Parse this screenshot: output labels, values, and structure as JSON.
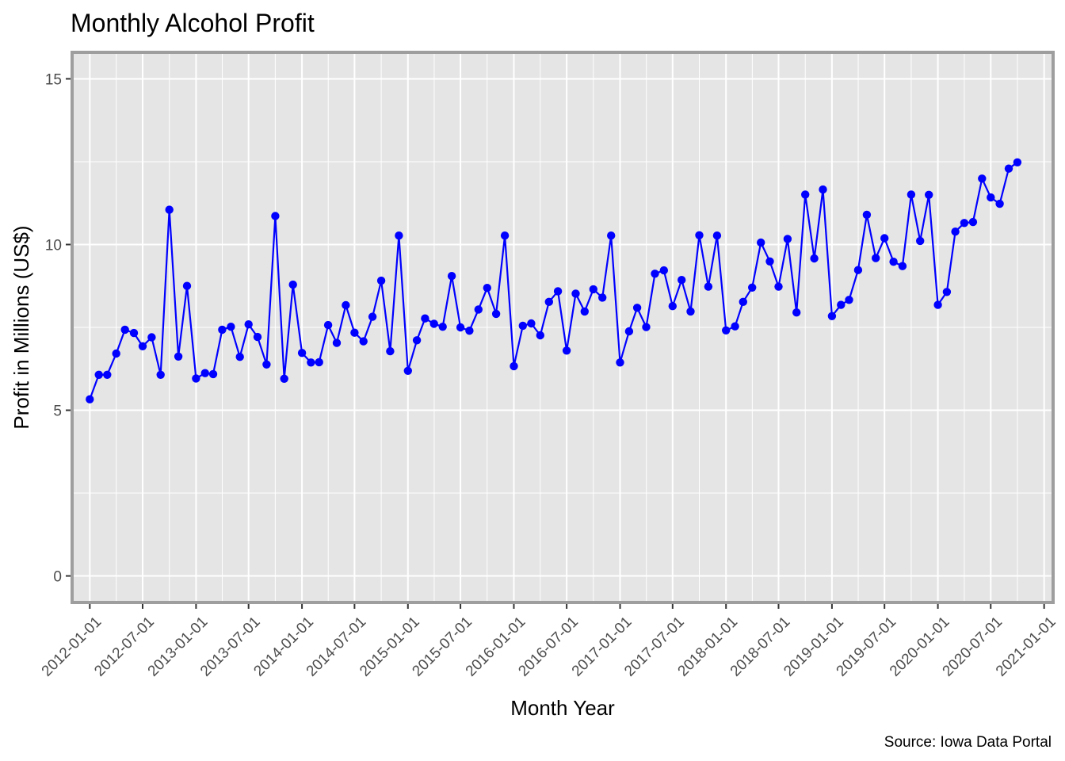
{
  "chart_data": {
    "type": "line",
    "title": "Monthly Alcohol Profit",
    "xlabel": "Month Year",
    "ylabel": "Profit in Millions (US$)",
    "caption": "Source: Iowa Data Portal",
    "ylim": [
      -0.8,
      15.8
    ],
    "xlim": [
      "2011-11-01",
      "2021-02-01"
    ],
    "y_ticks": [
      0,
      5,
      10,
      15
    ],
    "y_tick_labels": [
      "0",
      "5",
      "10",
      "15"
    ],
    "x_ticks": [
      "2012-01-01",
      "2012-07-01",
      "2013-01-01",
      "2013-07-01",
      "2014-01-01",
      "2014-07-01",
      "2015-01-01",
      "2015-07-01",
      "2016-01-01",
      "2016-07-01",
      "2017-01-01",
      "2017-07-01",
      "2018-01-01",
      "2018-07-01",
      "2019-01-01",
      "2019-07-01",
      "2020-01-01",
      "2020-07-01",
      "2021-01-01"
    ],
    "x_tick_labels": [
      "2012-01-01",
      "2012-07-01",
      "2013-01-01",
      "2013-07-01",
      "2014-01-01",
      "2014-07-01",
      "2015-01-01",
      "2015-07-01",
      "2016-01-01",
      "2016-07-01",
      "2017-01-01",
      "2017-07-01",
      "2018-01-01",
      "2018-07-01",
      "2019-01-01",
      "2019-07-01",
      "2020-01-01",
      "2020-07-01",
      "2021-01-01"
    ],
    "grid": true,
    "colors": {
      "series": "#0000ff",
      "panel": "#e5e5e5",
      "grid": "#ffffff",
      "border": "#9e9e9e"
    },
    "series": [
      {
        "x": [
          "2012-01-01",
          "2012-02-01",
          "2012-03-01",
          "2012-04-01",
          "2012-05-01",
          "2012-06-01",
          "2012-07-01",
          "2012-08-01",
          "2012-09-01",
          "2012-10-01",
          "2012-11-01",
          "2012-12-01",
          "2013-01-01",
          "2013-02-01",
          "2013-03-01",
          "2013-04-01",
          "2013-05-01",
          "2013-06-01",
          "2013-07-01",
          "2013-08-01",
          "2013-09-01",
          "2013-10-01",
          "2013-11-01",
          "2013-12-01",
          "2014-01-01",
          "2014-02-01",
          "2014-03-01",
          "2014-04-01",
          "2014-05-01",
          "2014-06-01",
          "2014-07-01",
          "2014-08-01",
          "2014-09-01",
          "2014-10-01",
          "2014-11-01",
          "2014-12-01",
          "2015-01-01",
          "2015-02-01",
          "2015-03-01",
          "2015-04-01",
          "2015-05-01",
          "2015-06-01",
          "2015-07-01",
          "2015-08-01",
          "2015-09-01",
          "2015-10-01",
          "2015-11-01",
          "2015-12-01",
          "2016-01-01",
          "2016-02-01",
          "2016-03-01",
          "2016-04-01",
          "2016-05-01",
          "2016-06-01",
          "2016-07-01",
          "2016-08-01",
          "2016-09-01",
          "2016-10-01",
          "2016-11-01",
          "2016-12-01",
          "2017-01-01",
          "2017-02-01",
          "2017-03-01",
          "2017-04-01",
          "2017-05-01",
          "2017-06-01",
          "2017-07-01",
          "2017-08-01",
          "2017-09-01",
          "2017-10-01",
          "2017-11-01",
          "2017-12-01",
          "2018-01-01",
          "2018-02-01",
          "2018-03-01",
          "2018-04-01",
          "2018-05-01",
          "2018-06-01",
          "2018-07-01",
          "2018-08-01",
          "2018-09-01",
          "2018-10-01",
          "2018-11-01",
          "2018-12-01",
          "2019-01-01",
          "2019-02-01",
          "2019-03-01",
          "2019-04-01",
          "2019-05-01",
          "2019-06-01",
          "2019-07-01",
          "2019-08-01",
          "2019-09-01",
          "2019-10-01",
          "2019-11-01",
          "2019-12-01",
          "2020-01-01",
          "2020-02-01",
          "2020-03-01",
          "2020-04-01",
          "2020-05-01",
          "2020-06-01",
          "2020-07-01",
          "2020-08-01",
          "2020-09-01",
          "2020-10-01"
        ],
        "values": [
          5.33,
          6.07,
          6.07,
          6.71,
          7.43,
          7.33,
          6.93,
          7.2,
          6.07,
          11.05,
          6.62,
          8.75,
          5.96,
          6.12,
          6.09,
          7.43,
          7.52,
          6.61,
          7.59,
          7.21,
          6.38,
          10.86,
          5.95,
          8.79,
          6.73,
          6.44,
          6.45,
          7.57,
          7.03,
          8.17,
          7.34,
          7.08,
          7.82,
          8.91,
          6.78,
          10.27,
          6.19,
          7.11,
          7.77,
          7.61,
          7.52,
          9.05,
          7.5,
          7.4,
          8.04,
          8.69,
          7.91,
          10.27,
          6.33,
          7.55,
          7.62,
          7.26,
          8.27,
          8.59,
          6.8,
          8.52,
          7.98,
          8.65,
          8.4,
          10.27,
          6.44,
          7.38,
          8.09,
          7.51,
          9.12,
          9.22,
          8.14,
          8.93,
          7.98,
          10.28,
          8.73,
          10.27,
          7.41,
          7.53,
          8.27,
          8.7,
          10.06,
          9.49,
          8.73,
          10.17,
          7.95,
          11.51,
          9.58,
          11.66,
          7.84,
          8.18,
          8.33,
          9.23,
          10.9,
          9.59,
          10.19,
          9.48,
          9.35,
          11.51,
          10.11,
          11.5,
          8.18,
          8.57,
          10.39,
          10.65,
          10.68,
          11.99,
          11.42,
          11.23,
          12.29,
          12.48
        ]
      }
    ]
  }
}
